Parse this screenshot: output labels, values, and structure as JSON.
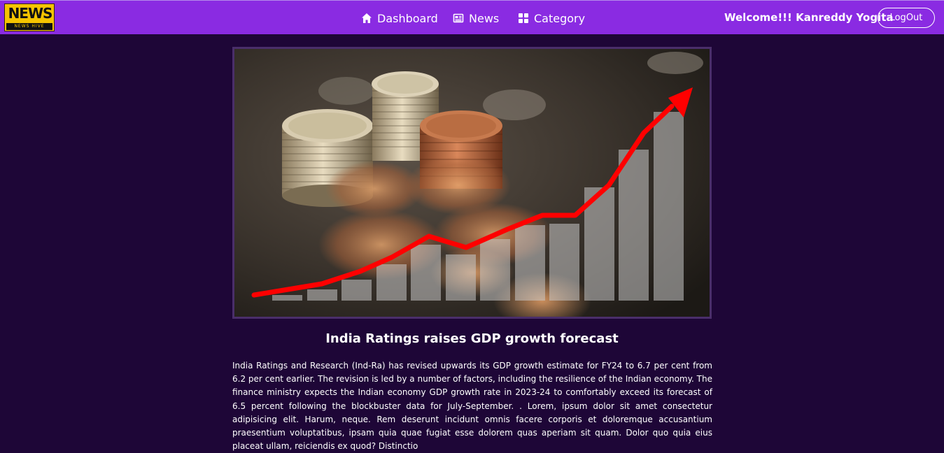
{
  "brand": {
    "logo_main": "NEWS",
    "logo_sub": "NEWS HIVE"
  },
  "nav": {
    "dashboard": "Dashboard",
    "news": "News",
    "category": "Category"
  },
  "user": {
    "welcome": "Welcome!!! Kanreddy Yogita",
    "logout": "LogOut"
  },
  "article": {
    "title": "India Ratings raises GDP growth forecast",
    "body": "India Ratings and Research (Ind-Ra) has revised upwards its GDP growth estimate for FY24 to 6.7 per cent from 6.2 per cent earlier. The revision is led by a number of factors, including the resilience of the Indian economy. The finance ministry expects the Indian economy GDP growth rate in 2023-24 to comfortably exceed its forecast of 6.5 percent following the blockbuster data for July-September. . Lorem, ipsum dolor sit amet consectetur adipisicing elit. Harum, neque. Rem deserunt incidunt omnis facere corporis et doloremque accusantium praesentium voluptatibus, ipsam quia quae fugiat esse dolorem quas aperiam sit quam. Dolor quo quia eius placeat ullam, reiciendis ex quod? Distinctio"
  },
  "colors": {
    "navbar": "#8a2be2",
    "page_background": "#1e0637",
    "logo_yellow": "#f5c400",
    "trend_arrow": "#ff0000"
  },
  "icons": {
    "dashboard": "home-icon",
    "news": "newspaper-icon",
    "category": "grid-icon",
    "hero": "coins-growth-chart-image"
  }
}
